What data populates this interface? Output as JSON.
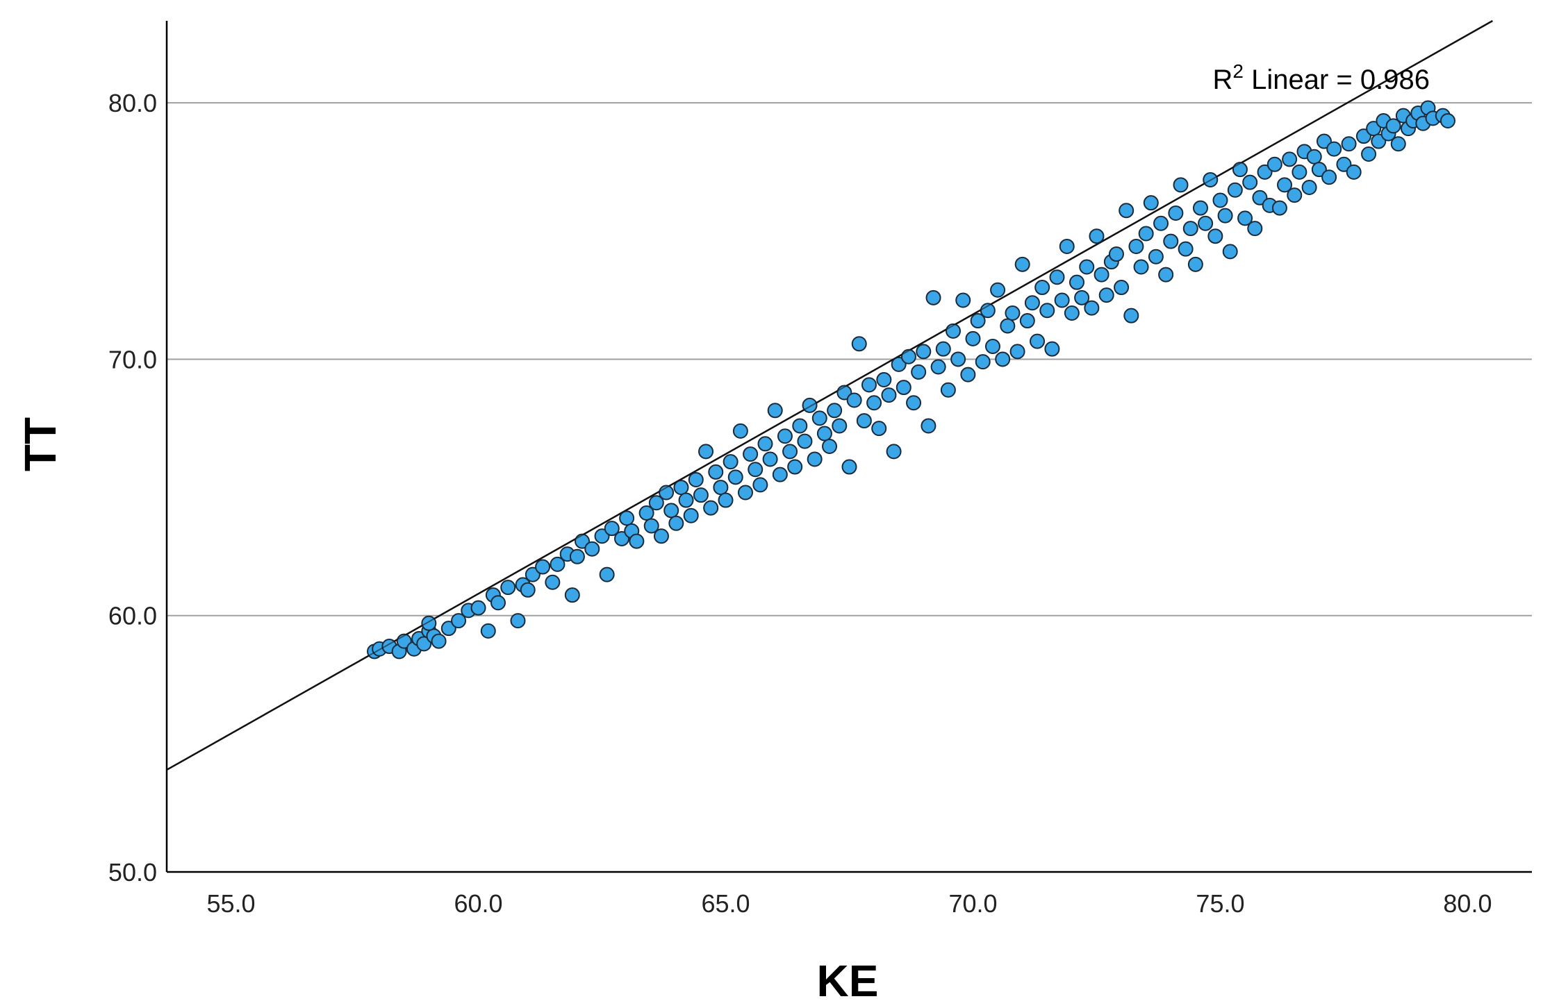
{
  "chart_data": {
    "type": "scatter",
    "xlabel": "KE",
    "ylabel": "TT",
    "xlim": [
      53.7,
      81.3
    ],
    "ylim": [
      50.0,
      83.2
    ],
    "x_ticks": [
      "55.0",
      "60.0",
      "65.0",
      "70.0",
      "75.0",
      "80.0"
    ],
    "y_ticks": [
      "50.0",
      "60.0",
      "70.0",
      "80.0"
    ],
    "grid": "horizontal",
    "annotation": {
      "prefix": "R",
      "sup": "2",
      "text": " Linear = 0.986"
    },
    "fit_line": {
      "slope": 1.09,
      "intercept": -4.55
    },
    "marker_color": "#3aa6e8",
    "marker_edge_color": "#1a2a38",
    "series": [
      {
        "points": [
          [
            57.9,
            58.6
          ],
          [
            58.0,
            58.7
          ],
          [
            58.2,
            58.8
          ],
          [
            58.4,
            58.6
          ],
          [
            58.5,
            59.0
          ],
          [
            58.7,
            58.7
          ],
          [
            58.8,
            59.1
          ],
          [
            58.9,
            58.9
          ],
          [
            59.0,
            59.4
          ],
          [
            59.1,
            59.2
          ],
          [
            59.2,
            59.0
          ],
          [
            59.0,
            59.7
          ],
          [
            59.4,
            59.5
          ],
          [
            59.6,
            59.8
          ],
          [
            59.8,
            60.2
          ],
          [
            60.0,
            60.3
          ],
          [
            60.2,
            59.4
          ],
          [
            60.3,
            60.8
          ],
          [
            60.4,
            60.5
          ],
          [
            60.6,
            61.1
          ],
          [
            60.8,
            59.8
          ],
          [
            60.9,
            61.2
          ],
          [
            61.0,
            61.0
          ],
          [
            61.1,
            61.6
          ],
          [
            61.3,
            61.9
          ],
          [
            61.5,
            61.3
          ],
          [
            61.6,
            62.0
          ],
          [
            61.8,
            62.4
          ],
          [
            61.9,
            60.8
          ],
          [
            62.0,
            62.3
          ],
          [
            62.1,
            62.9
          ],
          [
            62.3,
            62.6
          ],
          [
            62.5,
            63.1
          ],
          [
            62.6,
            61.6
          ],
          [
            62.7,
            63.4
          ],
          [
            62.9,
            63.0
          ],
          [
            63.0,
            63.8
          ],
          [
            63.1,
            63.3
          ],
          [
            63.2,
            62.9
          ],
          [
            63.4,
            64.0
          ],
          [
            63.5,
            63.5
          ],
          [
            63.6,
            64.4
          ],
          [
            63.7,
            63.1
          ],
          [
            63.8,
            64.8
          ],
          [
            63.9,
            64.1
          ],
          [
            64.0,
            63.6
          ],
          [
            64.1,
            65.0
          ],
          [
            64.2,
            64.5
          ],
          [
            64.3,
            63.9
          ],
          [
            64.4,
            65.3
          ],
          [
            64.5,
            64.7
          ],
          [
            64.6,
            66.4
          ],
          [
            64.7,
            64.2
          ],
          [
            64.8,
            65.6
          ],
          [
            64.9,
            65.0
          ],
          [
            65.0,
            64.5
          ],
          [
            65.1,
            66.0
          ],
          [
            65.2,
            65.4
          ],
          [
            65.3,
            67.2
          ],
          [
            65.4,
            64.8
          ],
          [
            65.5,
            66.3
          ],
          [
            65.6,
            65.7
          ],
          [
            65.7,
            65.1
          ],
          [
            65.8,
            66.7
          ],
          [
            65.9,
            66.1
          ],
          [
            66.0,
            68.0
          ],
          [
            66.1,
            65.5
          ],
          [
            66.2,
            67.0
          ],
          [
            66.3,
            66.4
          ],
          [
            66.4,
            65.8
          ],
          [
            66.5,
            67.4
          ],
          [
            66.6,
            66.8
          ],
          [
            66.7,
            68.2
          ],
          [
            66.8,
            66.1
          ],
          [
            66.9,
            67.7
          ],
          [
            67.0,
            67.1
          ],
          [
            67.1,
            66.6
          ],
          [
            67.2,
            68.0
          ],
          [
            67.3,
            67.4
          ],
          [
            67.4,
            68.7
          ],
          [
            67.5,
            65.8
          ],
          [
            67.6,
            68.4
          ],
          [
            67.7,
            70.6
          ],
          [
            67.8,
            67.6
          ],
          [
            67.9,
            69.0
          ],
          [
            68.0,
            68.3
          ],
          [
            68.1,
            67.3
          ],
          [
            68.2,
            69.2
          ],
          [
            68.3,
            68.6
          ],
          [
            68.4,
            66.4
          ],
          [
            68.5,
            69.8
          ],
          [
            68.6,
            68.9
          ],
          [
            68.7,
            70.1
          ],
          [
            68.8,
            68.3
          ],
          [
            68.9,
            69.5
          ],
          [
            69.0,
            70.3
          ],
          [
            69.1,
            67.4
          ],
          [
            69.2,
            72.4
          ],
          [
            69.3,
            69.7
          ],
          [
            69.4,
            70.4
          ],
          [
            69.5,
            68.8
          ],
          [
            69.6,
            71.1
          ],
          [
            69.7,
            70.0
          ],
          [
            69.8,
            72.3
          ],
          [
            69.9,
            69.4
          ],
          [
            70.0,
            70.8
          ],
          [
            70.1,
            71.5
          ],
          [
            70.2,
            69.9
          ],
          [
            70.3,
            71.9
          ],
          [
            70.4,
            70.5
          ],
          [
            70.5,
            72.7
          ],
          [
            70.6,
            70.0
          ],
          [
            70.7,
            71.3
          ],
          [
            70.8,
            71.8
          ],
          [
            70.9,
            70.3
          ],
          [
            71.0,
            73.7
          ],
          [
            71.1,
            71.5
          ],
          [
            71.2,
            72.2
          ],
          [
            71.3,
            70.7
          ],
          [
            71.4,
            72.8
          ],
          [
            71.5,
            71.9
          ],
          [
            71.6,
            70.4
          ],
          [
            71.7,
            73.2
          ],
          [
            71.8,
            72.3
          ],
          [
            71.9,
            74.4
          ],
          [
            72.0,
            71.8
          ],
          [
            72.1,
            73.0
          ],
          [
            72.2,
            72.4
          ],
          [
            72.3,
            73.6
          ],
          [
            72.4,
            72.0
          ],
          [
            72.5,
            74.8
          ],
          [
            72.6,
            73.3
          ],
          [
            72.7,
            72.5
          ],
          [
            72.8,
            73.8
          ],
          [
            72.9,
            74.1
          ],
          [
            73.0,
            72.8
          ],
          [
            73.1,
            75.8
          ],
          [
            73.2,
            71.7
          ],
          [
            73.3,
            74.4
          ],
          [
            73.4,
            73.6
          ],
          [
            73.5,
            74.9
          ],
          [
            73.6,
            76.1
          ],
          [
            73.7,
            74.0
          ],
          [
            73.8,
            75.3
          ],
          [
            73.9,
            73.3
          ],
          [
            74.0,
            74.6
          ],
          [
            74.1,
            75.7
          ],
          [
            74.2,
            76.8
          ],
          [
            74.3,
            74.3
          ],
          [
            74.4,
            75.1
          ],
          [
            74.5,
            73.7
          ],
          [
            74.6,
            75.9
          ],
          [
            74.7,
            75.3
          ],
          [
            74.8,
            77.0
          ],
          [
            74.9,
            74.8
          ],
          [
            75.0,
            76.2
          ],
          [
            75.1,
            75.6
          ],
          [
            75.2,
            74.2
          ],
          [
            75.3,
            76.6
          ],
          [
            75.4,
            77.4
          ],
          [
            75.5,
            75.5
          ],
          [
            75.6,
            76.9
          ],
          [
            75.7,
            75.1
          ],
          [
            75.8,
            76.3
          ],
          [
            75.9,
            77.3
          ],
          [
            76.0,
            76.0
          ],
          [
            76.1,
            77.6
          ],
          [
            76.2,
            75.9
          ],
          [
            76.3,
            76.8
          ],
          [
            76.4,
            77.8
          ],
          [
            76.5,
            76.4
          ],
          [
            76.6,
            77.3
          ],
          [
            76.7,
            78.1
          ],
          [
            76.8,
            76.7
          ],
          [
            76.9,
            77.9
          ],
          [
            77.0,
            77.4
          ],
          [
            77.1,
            78.5
          ],
          [
            77.2,
            77.1
          ],
          [
            77.3,
            78.2
          ],
          [
            77.5,
            77.6
          ],
          [
            77.6,
            78.4
          ],
          [
            77.7,
            77.3
          ],
          [
            77.9,
            78.7
          ],
          [
            78.0,
            78.0
          ],
          [
            78.1,
            79.0
          ],
          [
            78.2,
            78.5
          ],
          [
            78.3,
            79.3
          ],
          [
            78.4,
            78.8
          ],
          [
            78.5,
            79.1
          ],
          [
            78.6,
            78.4
          ],
          [
            78.7,
            79.5
          ],
          [
            78.8,
            79.0
          ],
          [
            78.9,
            79.3
          ],
          [
            79.0,
            79.6
          ],
          [
            79.1,
            79.2
          ],
          [
            79.2,
            79.8
          ],
          [
            79.3,
            79.4
          ],
          [
            79.5,
            79.5
          ],
          [
            79.6,
            79.3
          ]
        ]
      }
    ]
  }
}
